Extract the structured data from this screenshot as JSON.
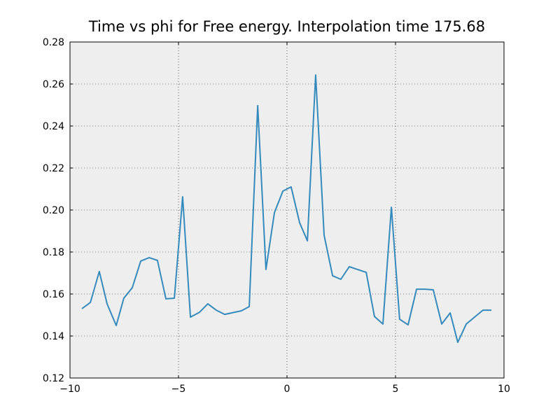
{
  "chart_data": {
    "type": "line",
    "title": "Time vs phi for Free energy. Interpolation time 175.68",
    "x": [
      -9.45,
      -9.06,
      -8.65,
      -8.29,
      -7.87,
      -7.52,
      -7.13,
      -6.74,
      -6.35,
      -5.97,
      -5.58,
      -5.19,
      -4.81,
      -4.45,
      -4.03,
      -3.65,
      -3.26,
      -2.87,
      -2.1,
      -1.74,
      -1.35,
      -0.97,
      -0.58,
      -0.19,
      0.19,
      0.58,
      0.94,
      1.32,
      1.71,
      2.1,
      2.48,
      2.87,
      3.65,
      4.03,
      4.42,
      4.81,
      5.19,
      5.58,
      5.97,
      6.35,
      6.74,
      7.13,
      7.52,
      7.87,
      8.26,
      9.03,
      9.42
    ],
    "series": [
      {
        "color": "#348abd",
        "values": [
          0.153,
          0.156,
          0.1707,
          0.1553,
          0.145,
          0.158,
          0.163,
          0.1757,
          0.1773,
          0.176,
          0.1577,
          0.158,
          0.2063,
          0.149,
          0.1513,
          0.1553,
          0.1523,
          0.1503,
          0.152,
          0.154,
          0.2497,
          0.1717,
          0.1987,
          0.209,
          0.211,
          0.194,
          0.1853,
          0.2643,
          0.188,
          0.1687,
          0.167,
          0.173,
          0.1703,
          0.1493,
          0.1457,
          0.2013,
          0.148,
          0.1453,
          0.1623,
          0.1623,
          0.162,
          0.1457,
          0.151,
          0.137,
          0.1457,
          0.1523,
          0.1523
        ]
      }
    ],
    "xlim": [
      -10,
      10
    ],
    "xticks": [
      {
        "value": -10,
        "label": "−10"
      },
      {
        "value": -5,
        "label": "−5"
      },
      0,
      5,
      10
    ],
    "ylim": [
      0.12,
      0.28
    ],
    "yticks": [
      0.12,
      0.14,
      0.16,
      0.18,
      {
        "value": 0.2,
        "label": "0.20"
      },
      0.22,
      0.24,
      0.26,
      0.28
    ],
    "grid": true
  }
}
